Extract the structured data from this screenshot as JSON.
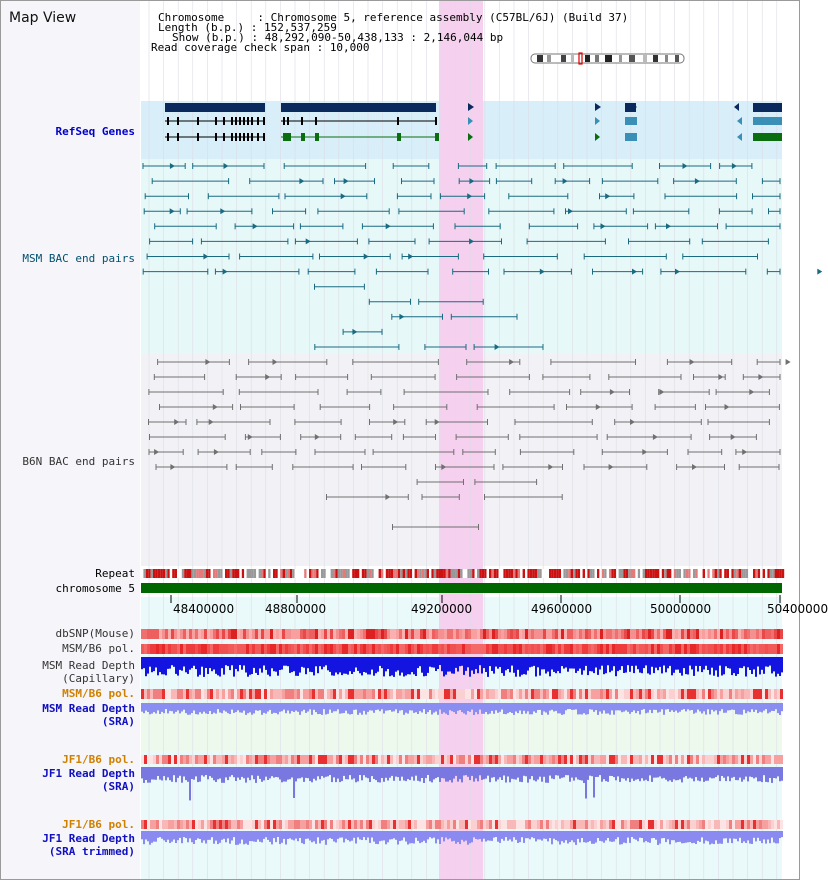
{
  "title": "Map View",
  "header": {
    "chromosome_label": "Chromosome     : ",
    "chromosome_value": "Chromosome 5, reference assembly (C57BL/6J) (Build 37)",
    "length_label": "Length (b.p.) : ",
    "length_value": "152,537,259",
    "show_label": "Show (b.p.) : ",
    "show_value": "48,292,090-50,438,133 : 2,146,044 bp",
    "coverage_label": "Read coverage check span : ",
    "coverage_value": "10,000"
  },
  "tracks": {
    "refseq": "RefSeq Genes",
    "msm_bac": "MSM BAC end pairs",
    "b6n_bac": "B6N BAC end pairs",
    "repeat": "Repeat",
    "chromosome": "chromosome 5",
    "dbsnp": "dbSNP(Mouse)",
    "msm_b6_pol_1": "MSM/B6 pol.",
    "msm_depth_cap_1": "MSM Read Depth",
    "msm_depth_cap_2": "(Capillary)",
    "msm_b6_pol_2": "MSM/B6 pol.",
    "msm_depth_sra_1": "MSM Read Depth",
    "msm_depth_sra_2": "(SRA)",
    "jf1_b6_pol_1": "JF1/B6 pol.",
    "jf1_depth_sra_1": "JF1 Read Depth",
    "jf1_depth_sra_2": "(SRA)",
    "jf1_b6_pol_2": "JF1/B6 pol.",
    "jf1_depth_trim_1": "JF1 Read Depth",
    "jf1_depth_trim_2": "(SRA trimmed)"
  },
  "axis": {
    "ticks": [
      "48400000",
      "48800000",
      "49200000",
      "49600000",
      "50000000",
      "50400000"
    ]
  },
  "colors": {
    "highlight": "#f5d0ef",
    "refseq_bg": "#d8eef9",
    "track_bg": "#e6f8f8",
    "msm_label": "#005070",
    "refseq_label": "#0000cc",
    "depth_label": "#1010c0",
    "pol_label": "#d08000",
    "chromosome_bar": "#006600"
  }
}
